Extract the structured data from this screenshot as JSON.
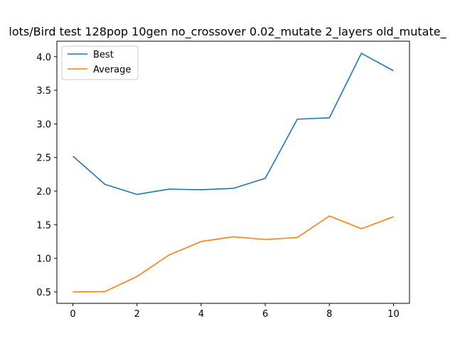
{
  "chart_data": {
    "type": "line",
    "title": "lots/Bird test 128pop 10gen no_crossover 0.02_mutate 2_layers old_mutate_",
    "xlabel": "",
    "ylabel": "",
    "x": [
      0,
      1,
      2,
      3,
      4,
      5,
      6,
      7,
      8,
      9,
      10
    ],
    "xlim": [
      -0.5,
      10.5
    ],
    "ylim": [
      0.33,
      4.23
    ],
    "xticks": [
      0,
      2,
      4,
      6,
      8,
      10
    ],
    "xtick_labels": [
      "0",
      "2",
      "4",
      "6",
      "8",
      "10"
    ],
    "yticks": [
      0.5,
      1.0,
      1.5,
      2.0,
      2.5,
      3.0,
      3.5,
      4.0
    ],
    "ytick_labels": [
      "0.5",
      "1.0",
      "1.5",
      "2.0",
      "2.5",
      "3.0",
      "3.5",
      "4.0"
    ],
    "grid": false,
    "legend_position": "top-left",
    "series": [
      {
        "name": "Best",
        "color": "#1f77b4",
        "values": [
          2.52,
          2.1,
          1.95,
          2.03,
          2.02,
          2.04,
          2.19,
          3.07,
          3.09,
          4.05,
          3.79
        ]
      },
      {
        "name": "Average",
        "color": "#ff7f0e",
        "values": [
          0.5,
          0.505,
          0.73,
          1.05,
          1.25,
          1.32,
          1.28,
          1.31,
          1.63,
          1.44,
          1.62
        ]
      }
    ]
  }
}
